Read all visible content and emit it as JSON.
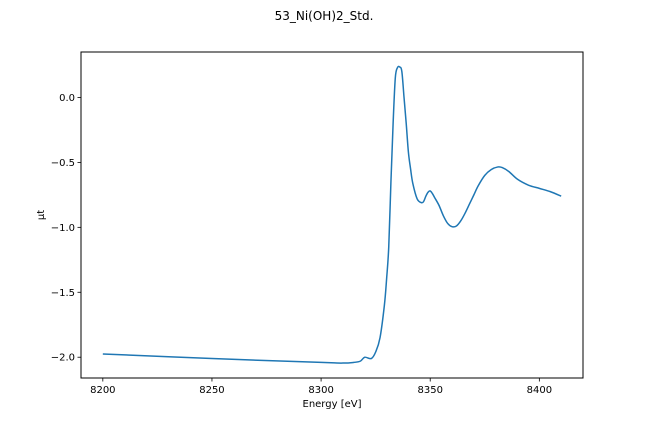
{
  "chart_data": {
    "type": "line",
    "title": "53_Ni(OH)2_Std.",
    "xlabel": "Energy [eV]",
    "ylabel": "μt",
    "xlim": [
      8190,
      8420
    ],
    "ylim": [
      -2.16,
      0.35
    ],
    "xticks": [
      8200,
      8250,
      8300,
      8350,
      8400
    ],
    "yticks": [
      -2.0,
      -1.5,
      -1.0,
      -0.5,
      0.0
    ],
    "ytick_labels": [
      "−2.0",
      "−1.5",
      "−1.0",
      "−0.5",
      "0.0"
    ],
    "grid": false,
    "color": "#1f77b4",
    "series": [
      {
        "x": [
          8200,
          8250,
          8300,
          8310,
          8315,
          8318,
          8320,
          8323,
          8325,
          8327,
          8329,
          8330,
          8331,
          8332,
          8333,
          8334,
          8335,
          8336,
          8337,
          8338,
          8339,
          8340,
          8341,
          8342,
          8344,
          8346,
          8347,
          8348,
          8349,
          8350,
          8351,
          8352,
          8354,
          8356,
          8358,
          8360,
          8362,
          8364,
          8366,
          8368,
          8370,
          8372,
          8375,
          8378,
          8381,
          8383,
          8386,
          8390,
          8395,
          8400,
          8405,
          8410
        ],
        "y": [
          -1.975,
          -2.01,
          -2.04,
          -2.045,
          -2.04,
          -2.03,
          -2.0,
          -2.01,
          -1.96,
          -1.85,
          -1.6,
          -1.4,
          -1.15,
          -0.65,
          -0.2,
          0.15,
          0.23,
          0.235,
          0.2,
          0.0,
          -0.2,
          -0.42,
          -0.55,
          -0.66,
          -0.78,
          -0.81,
          -0.8,
          -0.76,
          -0.73,
          -0.72,
          -0.74,
          -0.77,
          -0.83,
          -0.91,
          -0.97,
          -0.995,
          -0.99,
          -0.95,
          -0.89,
          -0.82,
          -0.75,
          -0.68,
          -0.6,
          -0.555,
          -0.535,
          -0.54,
          -0.57,
          -0.63,
          -0.675,
          -0.7,
          -0.725,
          -0.76
        ]
      }
    ]
  }
}
